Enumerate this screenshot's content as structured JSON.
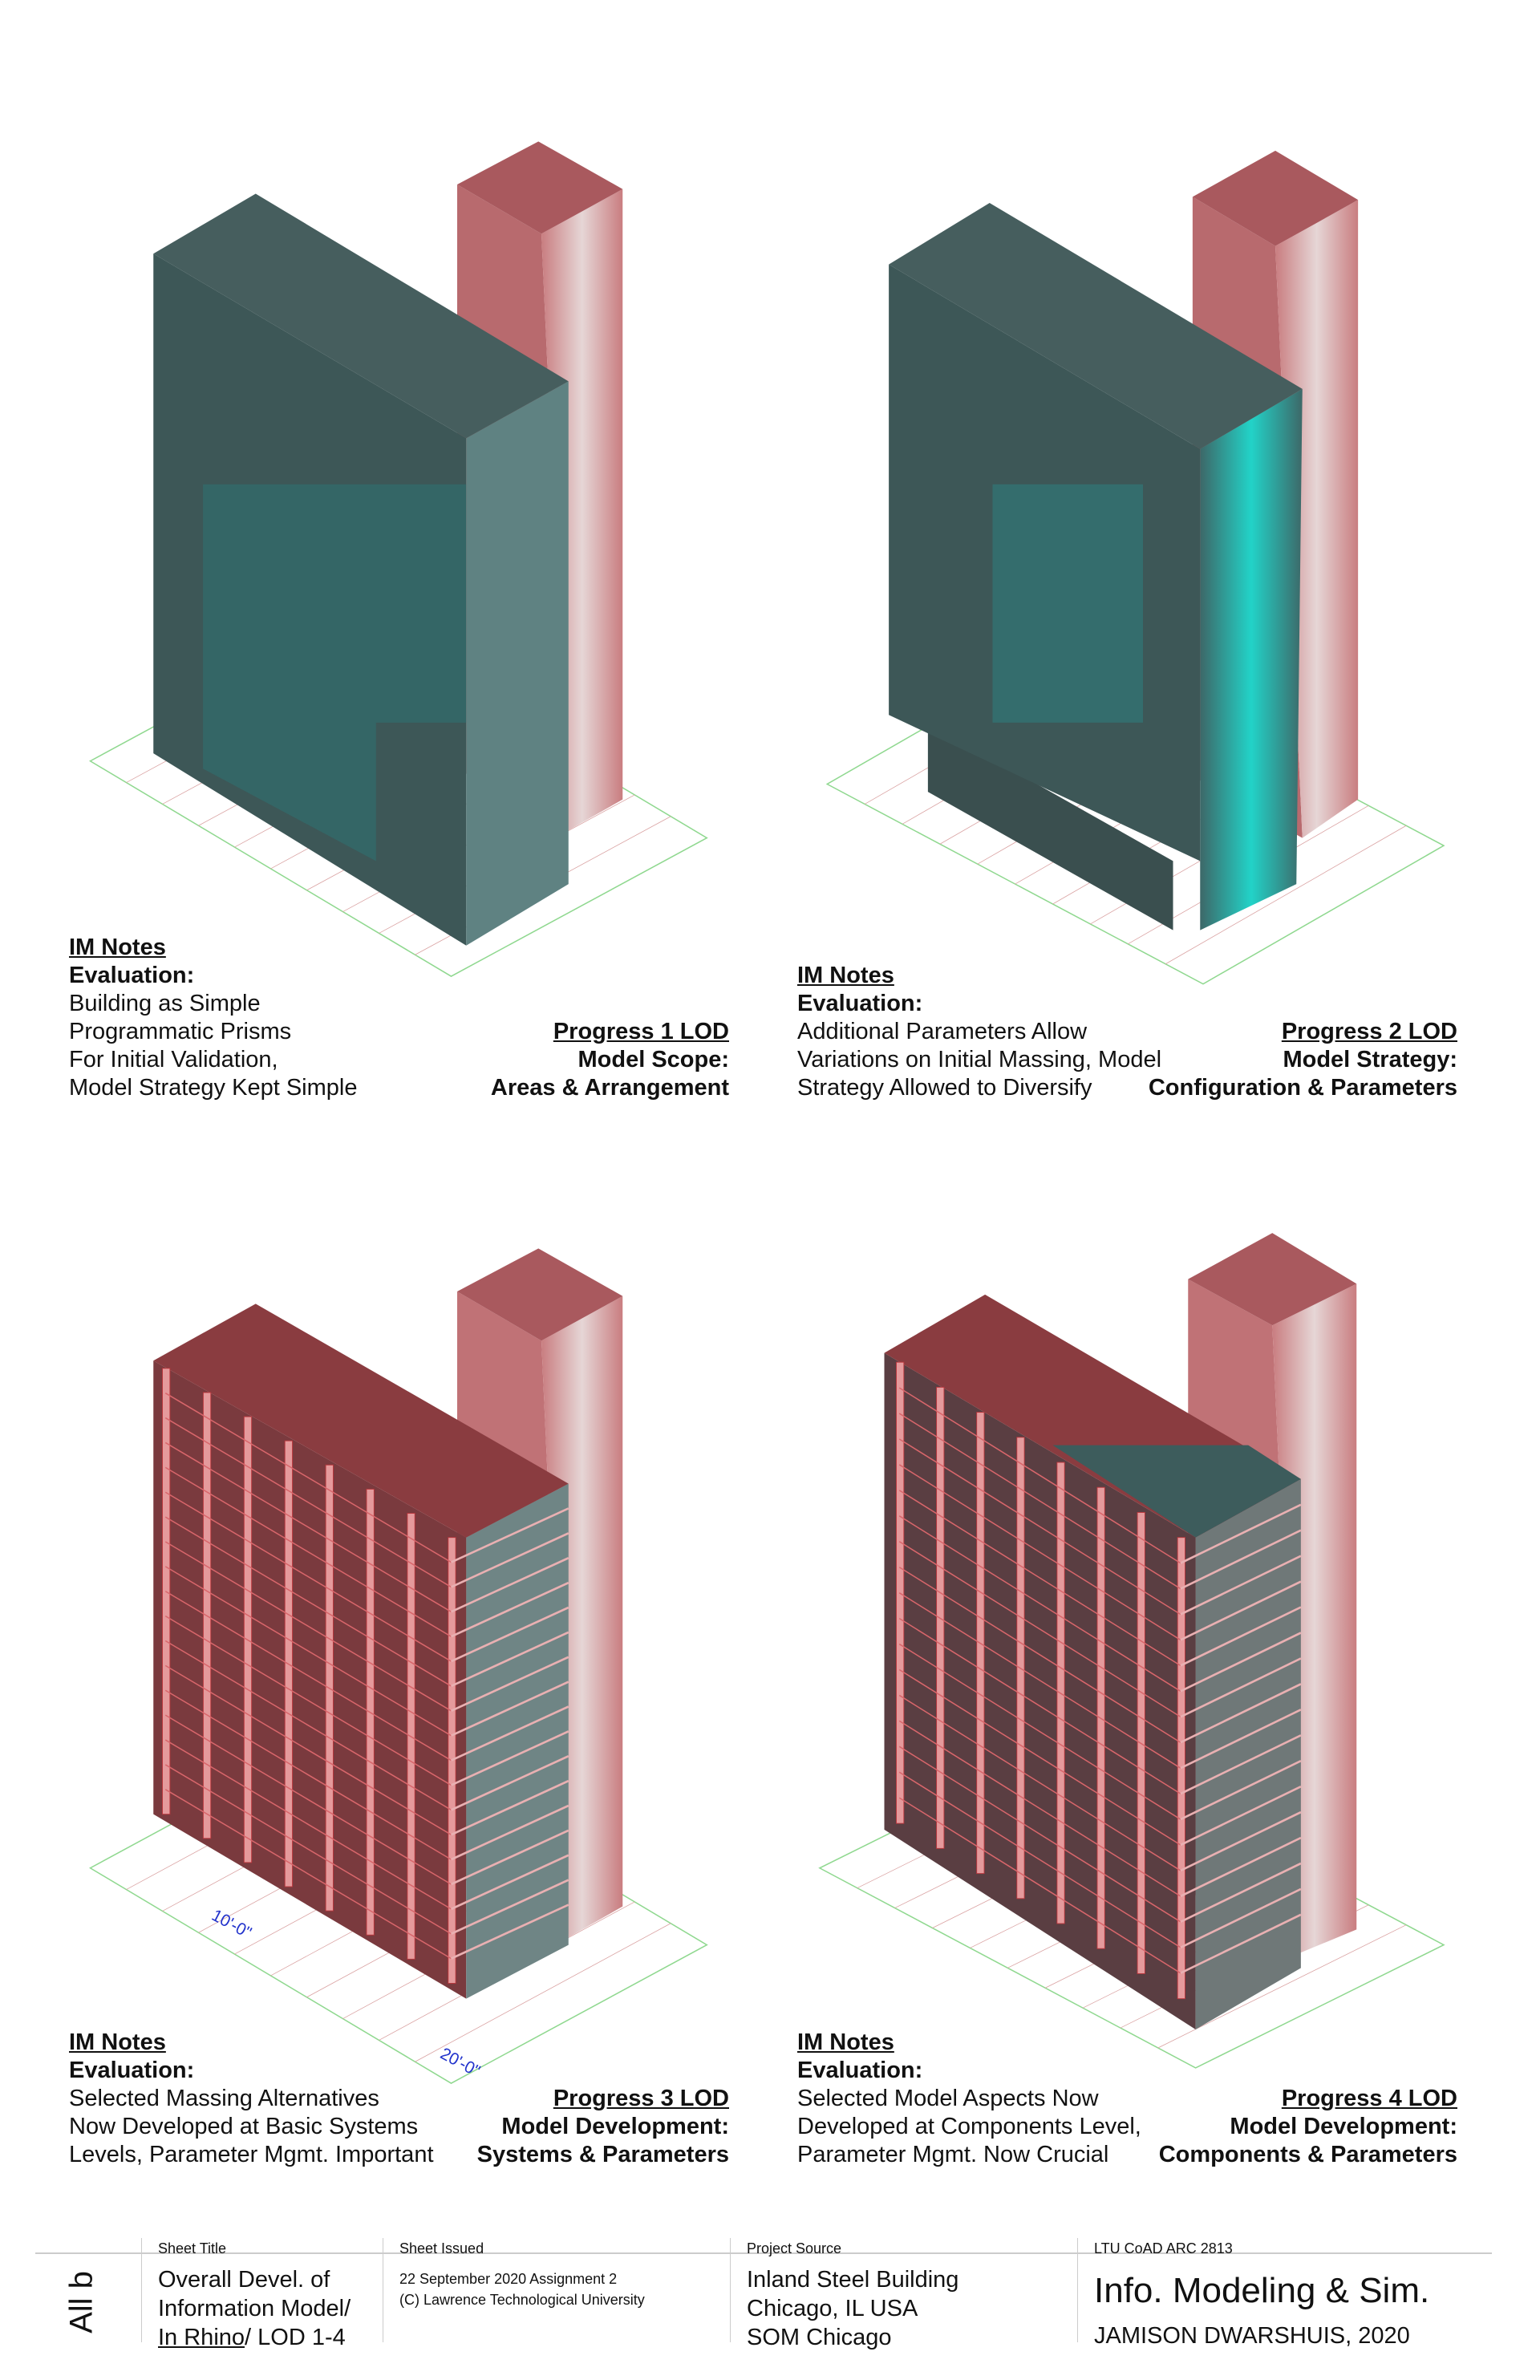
{
  "panels": [
    {
      "notes_title": "IM Notes",
      "eval_label": "Evaluation:",
      "eval_lines": [
        "Building as Simple",
        "Programmatic Prisms",
        "For Initial Validation,",
        "Model Strategy Kept Simple"
      ],
      "lod_title": "Progress 1 LOD",
      "lod_label": "Model Scope:",
      "lod_value": "Areas & Arrangement"
    },
    {
      "notes_title": "IM Notes",
      "eval_label": "Evaluation:",
      "eval_lines": [
        "Additional Parameters Allow",
        "Variations on Initial Massing, Model",
        "Strategy Allowed to Diversify"
      ],
      "lod_title": "Progress 2 LOD",
      "lod_label": "Model Strategy:",
      "lod_value": "Configuration & Parameters"
    },
    {
      "notes_title": "IM Notes",
      "eval_label": "Evaluation:",
      "eval_lines": [
        "Selected Massing Alternatives",
        "Now Developed at Basic Systems",
        "Levels, Parameter Mgmt. Important"
      ],
      "lod_title": "Progress 3 LOD",
      "lod_label": "Model Development:",
      "lod_value": "Systems & Parameters"
    },
    {
      "notes_title": "IM Notes",
      "eval_label": "Evaluation:",
      "eval_lines": [
        "Selected Model Aspects Now",
        "Developed at Components Level,",
        "Parameter Mgmt. Now Crucial"
      ],
      "lod_title": "Progress 4 LOD",
      "lod_label": "Model Development:",
      "lod_value": "Components & Parameters"
    }
  ],
  "dimension_labels": {
    "p3_a": "10'-0\"",
    "p3_b": "20'-0\""
  },
  "footer": {
    "sheet_no": "All b",
    "sheet_title_label": "Sheet Title",
    "sheet_title_lines": [
      "Overall Devel. of",
      "Information Model/"
    ],
    "sheet_title_link": "In Rhino",
    "sheet_title_rest": "/ LOD 1-4",
    "issued_label": "Sheet Issued",
    "issued_lines": [
      "22 September 2020  Assignment 2",
      "(C) Lawrence Technological University"
    ],
    "source_label": "Project Source",
    "source_lines": [
      "Inland Steel Building",
      "Chicago, IL USA",
      "SOM Chicago"
    ],
    "course_label": "LTU CoAD ARC 2813",
    "course_title": "Info. Modeling & Sim.",
    "author": "JAMISON DWARSHUIS, 2020"
  },
  "colors": {
    "massing_teal": "#3f5a5a",
    "tower_pink": "#c77b7e",
    "structure_red": "#b8363c",
    "highlight_cyan": "#22d3c8"
  }
}
